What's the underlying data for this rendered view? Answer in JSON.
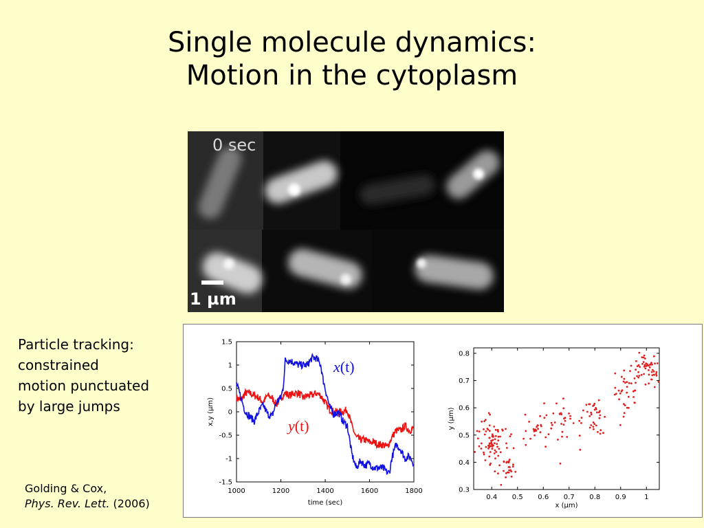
{
  "title": {
    "line1": "Single molecule dynamics:",
    "line2": "Motion in the cytoplasm"
  },
  "micrograph": {
    "time_label": "0 sec",
    "scale_label": "1 µm"
  },
  "description": {
    "line1": "Particle tracking:",
    "line2": "constrained",
    "line3": "motion punctuated",
    "line4": "by large jumps"
  },
  "citation": {
    "authors": "Golding & Cox,",
    "journal": "Phys. Rev. Lett.",
    "year": "(2006)"
  },
  "colors": {
    "background": "#ffffcc",
    "x_trace": "#1010e0",
    "y_trace": "#ee1111",
    "scatter": "#e02020"
  },
  "chart_data": [
    {
      "type": "line",
      "xlabel": "time (sec)",
      "ylabel": "x,y (µm)",
      "xlim": [
        1000,
        1800
      ],
      "ylim": [
        -1.5,
        1.5
      ],
      "x_ticks": [
        "1000",
        "1200",
        "1400",
        "1600",
        "1800"
      ],
      "y_ticks": [
        "-1.5",
        "-1",
        "-0.5",
        "0",
        "0.5",
        "1",
        "1.5"
      ],
      "series": [
        {
          "name": "x(t)",
          "color": "#1010e0",
          "x": [
            1000,
            1020,
            1040,
            1060,
            1080,
            1100,
            1120,
            1140,
            1160,
            1180,
            1200,
            1210,
            1220,
            1240,
            1260,
            1280,
            1300,
            1320,
            1340,
            1360,
            1380,
            1390,
            1400,
            1420,
            1440,
            1460,
            1480,
            1500,
            1510,
            1520,
            1540,
            1560,
            1580,
            1600,
            1620,
            1640,
            1660,
            1680,
            1690,
            1700,
            1720,
            1740,
            1760,
            1780,
            1800
          ],
          "y": [
            0.6,
            0.3,
            0.0,
            -0.1,
            -0.2,
            0.0,
            0.15,
            -0.05,
            -0.1,
            0.2,
            0.3,
            0.5,
            1.1,
            1.1,
            1.05,
            1.0,
            1.0,
            1.0,
            1.15,
            1.15,
            1.0,
            0.7,
            0.5,
            0.1,
            -0.05,
            0.0,
            -0.2,
            -0.3,
            -0.6,
            -0.9,
            -1.2,
            -1.05,
            -1.15,
            -1.1,
            -1.2,
            -1.2,
            -1.2,
            -1.3,
            -1.3,
            -1.0,
            -0.7,
            -0.8,
            -1.0,
            -0.95,
            -1.1
          ]
        },
        {
          "name": "y(t)",
          "color": "#ee1111",
          "x": [
            1000,
            1020,
            1040,
            1060,
            1080,
            1100,
            1120,
            1140,
            1160,
            1180,
            1200,
            1220,
            1240,
            1260,
            1280,
            1300,
            1320,
            1340,
            1360,
            1380,
            1400,
            1420,
            1440,
            1460,
            1480,
            1500,
            1520,
            1540,
            1560,
            1580,
            1600,
            1620,
            1640,
            1660,
            1680,
            1700,
            1720,
            1740,
            1760,
            1780,
            1800
          ],
          "y": [
            0.3,
            0.25,
            0.4,
            0.4,
            0.35,
            0.3,
            0.2,
            0.35,
            0.3,
            0.15,
            0.3,
            0.4,
            0.35,
            0.4,
            0.4,
            0.3,
            0.35,
            0.35,
            0.4,
            0.35,
            0.2,
            0.05,
            0.0,
            0.0,
            0.0,
            0.05,
            -0.3,
            -0.55,
            -0.6,
            -0.6,
            -0.65,
            -0.65,
            -0.7,
            -0.7,
            -0.75,
            -0.55,
            -0.4,
            -0.4,
            -0.3,
            -0.4,
            -0.35
          ]
        }
      ]
    },
    {
      "type": "scatter",
      "xlabel": "x (µm)",
      "ylabel": "y (µm)",
      "xlim": [
        0.33,
        1.05
      ],
      "ylim": [
        0.3,
        0.82
      ],
      "x_ticks": [
        "0.4",
        "0.5",
        "0.6",
        "0.7",
        "0.8",
        "0.9",
        "1"
      ],
      "y_ticks": [
        "0.3",
        "0.4",
        "0.5",
        "0.6",
        "0.7",
        "0.8"
      ],
      "clusters": [
        {
          "cx": 0.4,
          "cy": 0.48,
          "sx": 0.03,
          "sy": 0.045,
          "n": 80
        },
        {
          "cx": 0.46,
          "cy": 0.4,
          "sx": 0.02,
          "sy": 0.03,
          "n": 25
        },
        {
          "cx": 0.59,
          "cy": 0.52,
          "sx": 0.03,
          "sy": 0.03,
          "n": 30
        },
        {
          "cx": 0.69,
          "cy": 0.55,
          "sx": 0.04,
          "sy": 0.05,
          "n": 25
        },
        {
          "cx": 0.79,
          "cy": 0.56,
          "sx": 0.025,
          "sy": 0.04,
          "n": 35
        },
        {
          "cx": 0.92,
          "cy": 0.66,
          "sx": 0.025,
          "sy": 0.04,
          "n": 35
        },
        {
          "cx": 1.0,
          "cy": 0.74,
          "sx": 0.025,
          "sy": 0.03,
          "n": 55
        }
      ]
    }
  ]
}
